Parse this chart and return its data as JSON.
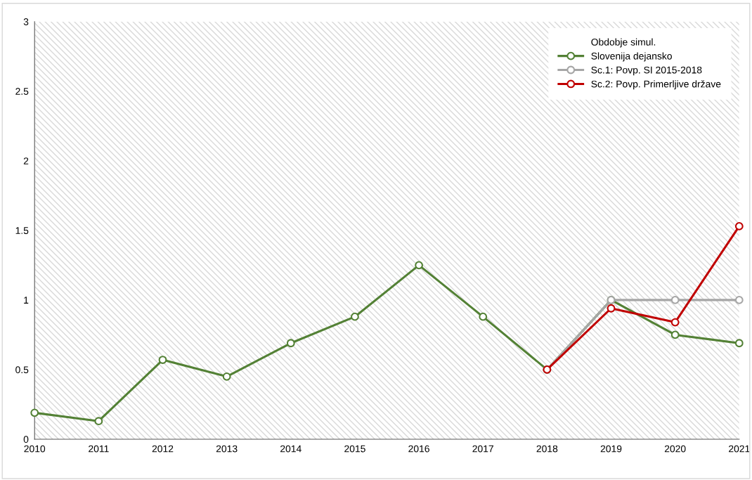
{
  "chart_data": {
    "type": "line",
    "x": [
      2010,
      2011,
      2012,
      2013,
      2014,
      2015,
      2016,
      2017,
      2018,
      2019,
      2020,
      2021
    ],
    "series": [
      {
        "name": "Slovenija dejansko",
        "color": "#538135",
        "values": [
          0.19,
          0.13,
          0.57,
          0.45,
          0.69,
          0.88,
          1.25,
          0.88,
          0.5,
          1.0,
          0.75,
          0.69
        ]
      },
      {
        "name": "Sc.1: Povp. SI 2015-2018",
        "color": "#a6a6a6",
        "x": [
          2018,
          2019,
          2020,
          2021
        ],
        "values": [
          0.5,
          1.0,
          1.0,
          1.0
        ]
      },
      {
        "name": "Sc.2: Povp. Primerljive države",
        "color": "#c00000",
        "x": [
          2018,
          2019,
          2020,
          2021
        ],
        "values": [
          0.5,
          0.94,
          0.84,
          1.53
        ]
      }
    ],
    "bands": [
      {
        "axis": "x",
        "from": 2010,
        "to": 2021,
        "label": "Obdobje simul.",
        "color": "#d9d9d9"
      }
    ],
    "xlim": [
      2010,
      2021
    ],
    "xticks": [
      2010,
      2011,
      2012,
      2013,
      2014,
      2015,
      2016,
      2017,
      2018,
      2019,
      2020,
      2021
    ],
    "ylim": [
      0,
      3
    ],
    "yticks": [
      0,
      0.5,
      1,
      1.5,
      2,
      2.5,
      3
    ],
    "grid": false,
    "legend": "top right",
    "marker": "circle",
    "line_style": "solid"
  }
}
